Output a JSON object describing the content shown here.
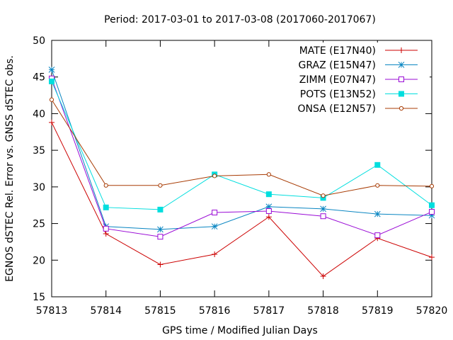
{
  "chart_data": {
    "type": "line",
    "title": "Period: 2017-03-01 to 2017-03-08 (2017060-2017067)",
    "xlabel": "GPS time / Modified Julian Days",
    "ylabel": "EGNOS dSTEC Rel. Error vs. GNSS dSTEC obs.",
    "x": [
      57813,
      57814,
      57815,
      57816,
      57817,
      57818,
      57819,
      57820
    ],
    "xticks": [
      "57813",
      "57814",
      "57815",
      "57816",
      "57817",
      "57818",
      "57819",
      "57820"
    ],
    "yticks": [
      "15",
      "20",
      "25",
      "30",
      "35",
      "40",
      "45",
      "50"
    ],
    "xlim": [
      57813,
      57820
    ],
    "ylim": [
      15,
      50
    ],
    "legend_position": "top-right",
    "series": [
      {
        "name": "MATE (E17N40)",
        "color": "#cc0000",
        "marker": "plus",
        "values": [
          38.8,
          23.6,
          19.4,
          20.8,
          25.9,
          17.8,
          23.0,
          20.4
        ]
      },
      {
        "name": "GRAZ (E15N47)",
        "color": "#0a86c2",
        "marker": "star",
        "values": [
          46.0,
          24.6,
          24.2,
          24.6,
          27.3,
          27.0,
          26.3,
          26.1
        ]
      },
      {
        "name": "ZIMM (E07N47)",
        "color": "#9a0bd6",
        "marker": "open-square",
        "values": [
          44.8,
          24.3,
          23.2,
          26.5,
          26.7,
          26.0,
          23.4,
          26.6
        ]
      },
      {
        "name": "POTS (E13N52)",
        "color": "#00dede",
        "marker": "filled-square",
        "values": [
          44.4,
          27.2,
          26.9,
          31.7,
          29.0,
          28.5,
          33.0,
          27.5
        ]
      },
      {
        "name": "ONSA (E12N57)",
        "color": "#a83c05",
        "marker": "circle",
        "values": [
          41.9,
          30.2,
          30.2,
          31.5,
          31.7,
          28.8,
          30.2,
          30.1
        ]
      }
    ]
  }
}
